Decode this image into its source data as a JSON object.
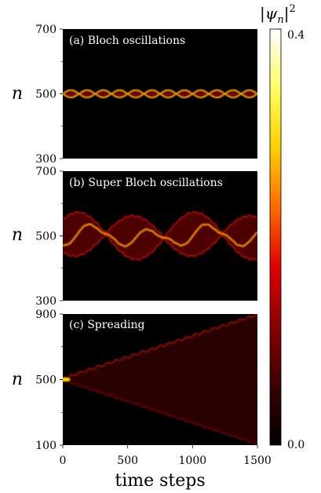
{
  "figure": {
    "xlabel": "time steps",
    "x_ticks": [
      "0",
      "500",
      "1000",
      "1500"
    ],
    "colorbar": {
      "label": "|ψ",
      "label_sub": "n",
      "label_sup": "2",
      "max_label": "0.4",
      "min_label": "0.0",
      "colors": [
        "#000000",
        "#3a0000",
        "#8a0000",
        "#e00000",
        "#ff6a00",
        "#ffd000",
        "#ffff60",
        "#ffffff"
      ]
    }
  },
  "chart_data": [
    {
      "type": "heatmap",
      "title": "(a) Bloch oscillations",
      "ylabel": "n",
      "xlim": [
        0,
        1500
      ],
      "ylim": [
        300,
        700
      ],
      "y_ticks": [
        "700",
        "500",
        "300"
      ],
      "center": 500,
      "oscillation_amplitude": 12,
      "oscillation_periods": 12
    },
    {
      "type": "heatmap",
      "title": "(b) Super Bloch oscillations",
      "ylabel": "n",
      "xlim": [
        0,
        1500
      ],
      "ylim": [
        300,
        700
      ],
      "y_ticks": [
        "700",
        "500",
        "300"
      ],
      "center": 500,
      "envelope_max": 65,
      "super_period": 900,
      "fast_periods": 28
    },
    {
      "type": "heatmap",
      "title": "(c) Spreading",
      "ylabel": "n",
      "xlim": [
        0,
        1500
      ],
      "ylim": [
        100,
        900
      ],
      "y_ticks": [
        "900",
        "500",
        "100"
      ],
      "center": 500,
      "spread_at_end": 390,
      "fast_periods": 22
    }
  ]
}
